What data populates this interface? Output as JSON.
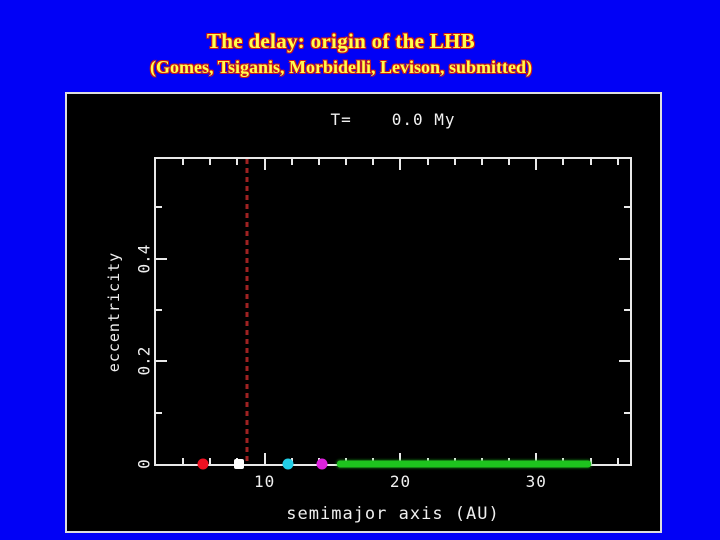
{
  "slide": {
    "title": "The delay: origin of the LHB",
    "subtitle": "(Gomes, Tsiganis, Morbidelli, Levison, submitted)",
    "background_color": "#0101f6",
    "title_fill_color": "#ffff4d",
    "title_outline_color": "#cc1a1a"
  },
  "plot": {
    "t_label": "T=",
    "t_value": "0.0 My",
    "xlabel": "semimajor axis (AU)",
    "ylabel": "eccentricity",
    "frame_color": "#e9e9e9",
    "panel_background": "#000000"
  },
  "chart_data": {
    "type": "scatter",
    "title": "T= 0.0 My",
    "xlabel": "semimajor axis (AU)",
    "ylabel": "eccentricity",
    "x_range": [
      2.0,
      36.9
    ],
    "y_range": [
      0,
      0.594
    ],
    "grid": false,
    "x_major_ticks": [
      10,
      20,
      30
    ],
    "x_tick_labels": [
      "10",
      "20",
      "30"
    ],
    "x_minor_tick_step": 2,
    "y_major_ticks": [
      0.2,
      0.4
    ],
    "y_minor_ticks": [
      0.1,
      0.3,
      0.5
    ],
    "y_labeled_ticks": [
      0,
      0.2,
      0.4
    ],
    "y_tick_labels": [
      "0",
      "0.2",
      "0.4"
    ],
    "vline": {
      "x": 8.7,
      "color": "#a02222",
      "style": "dashed"
    },
    "points": [
      {
        "name": "red-point",
        "x": 5.45,
        "y": 0,
        "color": "#ee1122",
        "marker": "circle"
      },
      {
        "name": "white-point",
        "x": 8.1,
        "y": 0,
        "color": "#ffffff",
        "marker": "square"
      },
      {
        "name": "cyan-point",
        "x": 11.7,
        "y": 0,
        "color": "#22cfe8",
        "marker": "circle"
      },
      {
        "name": "magenta-point",
        "x": 14.2,
        "y": 0,
        "color": "#dd22dd",
        "marker": "circle"
      }
    ],
    "disk_band": {
      "x_start": 15.3,
      "x_end": 34.0,
      "y": 0,
      "color": "#1ec41e"
    }
  }
}
